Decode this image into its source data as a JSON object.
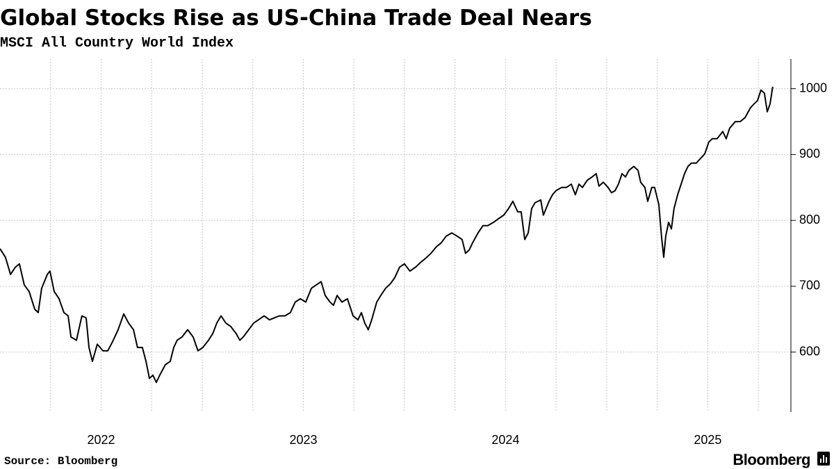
{
  "chart_data": {
    "type": "line",
    "title": "Global Stocks Rise as US-China Trade Deal Nears",
    "subtitle": "MSCI All Country World Index",
    "source": "Source: Bloomberg",
    "logo": "Bloomberg",
    "color": "#000000",
    "grid": true,
    "x": [
      2022.0,
      2022.027,
      2022.052,
      2022.076,
      2022.096,
      2022.12,
      2022.144,
      2022.172,
      2022.189,
      2022.206,
      2022.234,
      2022.247,
      2022.268,
      2022.292,
      2022.316,
      2022.337,
      2022.351,
      2022.378,
      2022.405,
      2022.426,
      2022.44,
      2022.457,
      2022.481,
      2022.509,
      2022.533,
      2022.557,
      2022.584,
      2022.612,
      2022.636,
      2022.66,
      2022.68,
      2022.704,
      2022.722,
      2022.739,
      2022.756,
      2022.773,
      2022.79,
      2022.818,
      2022.842,
      2022.859,
      2022.876,
      2022.9,
      2022.928,
      2022.955,
      2022.979,
      2023.003,
      2023.031,
      2023.052,
      2023.072,
      2023.093,
      2023.117,
      2023.141,
      2023.168,
      2023.186,
      2023.203,
      2023.23,
      2023.254,
      2023.278,
      2023.306,
      2023.333,
      2023.357,
      2023.381,
      2023.409,
      2023.436,
      2023.46,
      2023.485,
      2023.512,
      2023.54,
      2023.564,
      2023.588,
      2023.608,
      2023.632,
      2023.649,
      2023.667,
      2023.691,
      2023.718,
      2023.746,
      2023.77,
      2023.787,
      2023.804,
      2023.821,
      2023.838,
      2023.863,
      2023.883,
      2023.907,
      2023.931,
      2023.952,
      2023.976,
      2024.0,
      2024.027,
      2024.055,
      2024.079,
      2024.103,
      2024.131,
      2024.158,
      2024.182,
      2024.206,
      2024.234,
      2024.261,
      2024.285,
      2024.302,
      2024.32,
      2024.337,
      2024.364,
      2024.388,
      2024.412,
      2024.44,
      2024.467,
      2024.491,
      2024.515,
      2024.536,
      2024.56,
      2024.577,
      2024.595,
      2024.612,
      2024.629,
      2024.646,
      2024.674,
      2024.687,
      2024.715,
      2024.732,
      2024.749,
      2024.777,
      2024.801,
      2024.825,
      2024.845,
      2024.863,
      2024.88,
      2024.904,
      2024.928,
      2024.948,
      2024.962,
      2024.983,
      2025.007,
      2025.024,
      2025.041,
      2025.058,
      2025.076,
      2025.093,
      2025.11,
      2025.134,
      2025.155,
      2025.168,
      2025.189,
      2025.203,
      2025.223,
      2025.237,
      2025.258,
      2025.271,
      2025.282,
      2025.292,
      2025.306,
      2025.32,
      2025.333,
      2025.351,
      2025.368,
      2025.385,
      2025.402,
      2025.419,
      2025.443,
      2025.464,
      2025.485,
      2025.505,
      2025.522,
      2025.546,
      2025.574,
      2025.591,
      2025.608,
      2025.636,
      2025.66,
      2025.684,
      2025.711,
      2025.729,
      2025.746,
      2025.763,
      2025.78,
      2025.794,
      2025.808,
      2025.821
    ],
    "values": [
      757,
      744,
      718,
      729,
      734,
      702,
      692,
      665,
      660,
      697,
      718,
      723,
      692,
      681,
      660,
      655,
      623,
      618,
      655,
      652,
      607,
      586,
      612,
      602,
      602,
      616,
      634,
      658,
      644,
      634,
      607,
      607,
      586,
      560,
      565,
      554,
      565,
      581,
      586,
      607,
      618,
      623,
      634,
      623,
      602,
      607,
      618,
      628,
      644,
      655,
      644,
      639,
      628,
      618,
      623,
      634,
      644,
      649,
      655,
      649,
      652,
      655,
      655,
      660,
      676,
      681,
      676,
      697,
      702,
      707,
      686,
      676,
      671,
      686,
      676,
      681,
      655,
      649,
      660,
      644,
      634,
      649,
      676,
      686,
      697,
      704,
      713,
      729,
      734,
      723,
      729,
      736,
      742,
      750,
      760,
      766,
      776,
      781,
      776,
      771,
      750,
      755,
      766,
      781,
      792,
      792,
      797,
      803,
      808,
      818,
      829,
      813,
      813,
      771,
      781,
      818,
      827,
      831,
      808,
      829,
      839,
      845,
      850,
      850,
      855,
      839,
      855,
      850,
      861,
      866,
      871,
      852,
      858,
      850,
      842,
      845,
      855,
      871,
      866,
      876,
      882,
      876,
      858,
      850,
      829,
      850,
      850,
      824,
      776,
      744,
      776,
      797,
      787,
      818,
      839,
      855,
      871,
      882,
      887,
      887,
      894,
      901,
      919,
      924,
      924,
      935,
      924,
      940,
      950,
      950,
      956,
      971,
      977,
      982,
      998,
      993,
      965,
      977,
      1003
    ],
    "xlim": [
      2022.0,
      2025.911
    ],
    "xticks": [
      {
        "value": 2022.5,
        "label": "2022"
      },
      {
        "value": 2023.5,
        "label": "2023"
      },
      {
        "value": 2024.5,
        "label": "2024"
      },
      {
        "value": 2025.5,
        "label": "2025"
      }
    ],
    "xgrid": [
      2022.25,
      2022.5,
      2022.75,
      2023.0,
      2023.25,
      2023.5,
      2023.75,
      2024.0,
      2024.25,
      2024.5,
      2024.75,
      2025.0,
      2025.25,
      2025.5,
      2025.75
    ],
    "ylim": [
      509,
      1045
    ],
    "yticks": [
      600,
      700,
      800,
      900,
      1000
    ]
  }
}
